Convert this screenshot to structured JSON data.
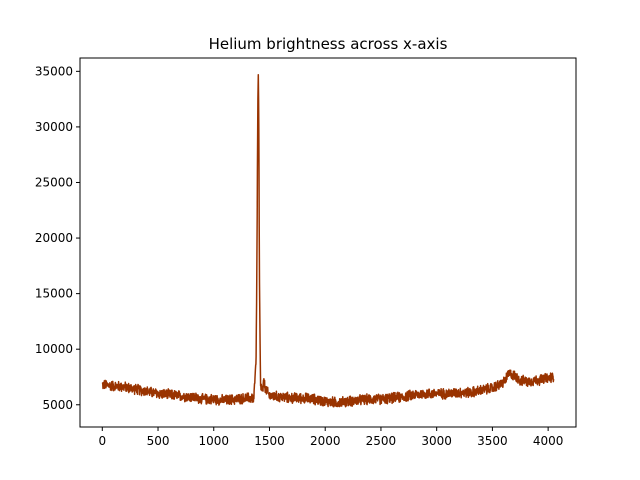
{
  "chart_data": {
    "type": "line",
    "title": "Helium brightness across x-axis",
    "xlabel": "",
    "ylabel": "",
    "xlim": [
      -200,
      4250
    ],
    "ylim": [
      3000,
      36200
    ],
    "xticks": [
      0,
      500,
      1000,
      1500,
      2000,
      2500,
      3000,
      3500,
      4000
    ],
    "yticks": [
      5000,
      10000,
      15000,
      20000,
      25000,
      30000,
      35000
    ],
    "grid": false,
    "legend": "none",
    "series": [
      {
        "color": "#993300",
        "noise_amplitude": 450,
        "x": [
          0,
          100,
          200,
          300,
          400,
          500,
          600,
          700,
          800,
          900,
          1000,
          1100,
          1200,
          1300,
          1360,
          1380,
          1390,
          1395,
          1400,
          1405,
          1410,
          1420,
          1440,
          1450,
          1460,
          1500,
          1600,
          1700,
          1800,
          1900,
          2000,
          2100,
          2200,
          2300,
          2400,
          2500,
          2600,
          2700,
          2800,
          2900,
          3000,
          3100,
          3200,
          3300,
          3400,
          3500,
          3600,
          3650,
          3700,
          3750,
          3800,
          3900,
          4000,
          4050
        ],
        "y": [
          6800,
          6700,
          6600,
          6400,
          6200,
          6000,
          5900,
          5800,
          5700,
          5500,
          5500,
          5400,
          5500,
          5600,
          5600,
          9000,
          22000,
          32000,
          34700,
          29000,
          16000,
          6800,
          6200,
          7200,
          6500,
          5800,
          5700,
          5600,
          5600,
          5500,
          5300,
          5200,
          5300,
          5400,
          5500,
          5500,
          5600,
          5700,
          5900,
          6000,
          6000,
          6000,
          6100,
          6100,
          6300,
          6500,
          7000,
          7800,
          7600,
          7200,
          7100,
          7200,
          7400,
          7500
        ]
      }
    ]
  }
}
